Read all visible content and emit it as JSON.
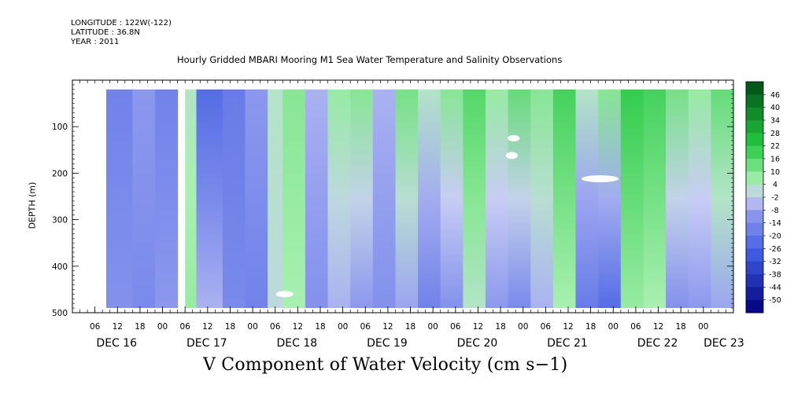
{
  "header": {
    "longitude": "LONGITUDE : 122W(-122)",
    "latitude": "LATITUDE : 36.8N",
    "year": "YEAR : 2011",
    "title": "Hourly Gridded MBARI Mooring M1 Sea Water Temperature and Salinity Observations"
  },
  "footer": {
    "variable_label": "V Component of Water Velocity (cm s−1)"
  },
  "colors": {
    "negative_strong": "#00007a",
    "negative_mid": "#3a57e0",
    "negative_light": "#8c98ee",
    "neutral": "#c8ccf4",
    "positive_light": "#a8f0b0",
    "positive_mid": "#22c840",
    "positive_strong": "#004d14"
  },
  "chart_data": {
    "type": "heatmap",
    "title": "Hourly Gridded MBARI Mooring M1 Sea Water Temperature and Salinity Observations",
    "xlabel": "",
    "ylabel": "DEPTH (m)",
    "variable": "V Component of Water Velocity (cm s−1)",
    "y_reversed": true,
    "ylim": [
      500,
      0
    ],
    "y_ticks": [
      100,
      200,
      300,
      400,
      500
    ],
    "x_hour_ticks": [
      "06",
      "12",
      "18",
      "00",
      "06",
      "12",
      "18",
      "00",
      "06",
      "12",
      "18",
      "00",
      "06",
      "12",
      "18",
      "00",
      "06",
      "12",
      "18",
      "00",
      "06",
      "12",
      "18",
      "00",
      "06",
      "12",
      "18",
      "00"
    ],
    "x_date_labels": [
      "DEC 16",
      "DEC 17",
      "DEC 18",
      "DEC 19",
      "DEC 20",
      "DEC 21",
      "DEC 22",
      "DEC 23"
    ],
    "colorbar_levels": [
      "46",
      "40",
      "34",
      "28",
      "22",
      "16",
      "10",
      "4",
      "-2",
      "-8",
      "-14",
      "-20",
      "-26",
      "-32",
      "-38",
      "-44",
      "-50"
    ],
    "colorbar_range": [
      -50,
      49
    ],
    "data_gaps": [
      "between DEC 16 and DEC 17 (~06)",
      "partial near surface DEC 20 18h",
      "patch ~215 m DEC 21 20h"
    ],
    "bands_depth_start_m": 20,
    "bands_depth_end_m": 490,
    "bands": [
      {
        "start_hour": 9,
        "end_hour": 16,
        "surface": -14,
        "deep": -10
      },
      {
        "start_hour": 16,
        "end_hour": 22,
        "surface": -8,
        "deep": -12
      },
      {
        "start_hour": 22,
        "end_hour": 28,
        "surface": -14,
        "deep": -8
      },
      {
        "start_hour": 30,
        "end_hour": 33,
        "surface": 4,
        "deep": 8
      },
      {
        "start_hour": 33,
        "end_hour": 40,
        "surface": -20,
        "deep": -4
      },
      {
        "start_hour": 40,
        "end_hour": 46,
        "surface": -16,
        "deep": -12
      },
      {
        "start_hour": 46,
        "end_hour": 52,
        "surface": -8,
        "deep": -14
      },
      {
        "start_hour": 52,
        "end_hour": 56,
        "surface": 4,
        "deep": 2
      },
      {
        "start_hour": 56,
        "end_hour": 62,
        "surface": 10,
        "deep": 6
      },
      {
        "start_hour": 62,
        "end_hour": 68,
        "surface": -4,
        "deep": -10
      },
      {
        "start_hour": 68,
        "end_hour": 74,
        "surface": 8,
        "deep": -4
      },
      {
        "start_hour": 74,
        "end_hour": 80,
        "surface": 10,
        "deep": -8
      },
      {
        "start_hour": 80,
        "end_hour": 86,
        "surface": -4,
        "deep": -10
      },
      {
        "start_hour": 86,
        "end_hour": 92,
        "surface": 12,
        "deep": -6
      },
      {
        "start_hour": 92,
        "end_hour": 98,
        "surface": 4,
        "deep": -14
      },
      {
        "start_hour": 98,
        "end_hour": 104,
        "surface": 10,
        "deep": -10
      },
      {
        "start_hour": 104,
        "end_hour": 110,
        "surface": 16,
        "deep": 4
      },
      {
        "start_hour": 110,
        "end_hour": 116,
        "surface": 8,
        "deep": -8
      },
      {
        "start_hour": 116,
        "end_hour": 122,
        "surface": 14,
        "deep": -12
      },
      {
        "start_hour": 122,
        "end_hour": 128,
        "surface": 10,
        "deep": -4
      },
      {
        "start_hour": 128,
        "end_hour": 134,
        "surface": 18,
        "deep": 6
      },
      {
        "start_hour": 134,
        "end_hour": 140,
        "surface": 4,
        "deep": -16
      },
      {
        "start_hour": 140,
        "end_hour": 146,
        "surface": 10,
        "deep": -20
      },
      {
        "start_hour": 146,
        "end_hour": 152,
        "surface": 20,
        "deep": 8
      },
      {
        "start_hour": 152,
        "end_hour": 158,
        "surface": 18,
        "deep": 6
      },
      {
        "start_hour": 158,
        "end_hour": 164,
        "surface": 12,
        "deep": -10
      },
      {
        "start_hour": 164,
        "end_hour": 170,
        "surface": 8,
        "deep": -8
      },
      {
        "start_hour": 170,
        "end_hour": 176,
        "surface": 14,
        "deep": -6
      }
    ]
  }
}
